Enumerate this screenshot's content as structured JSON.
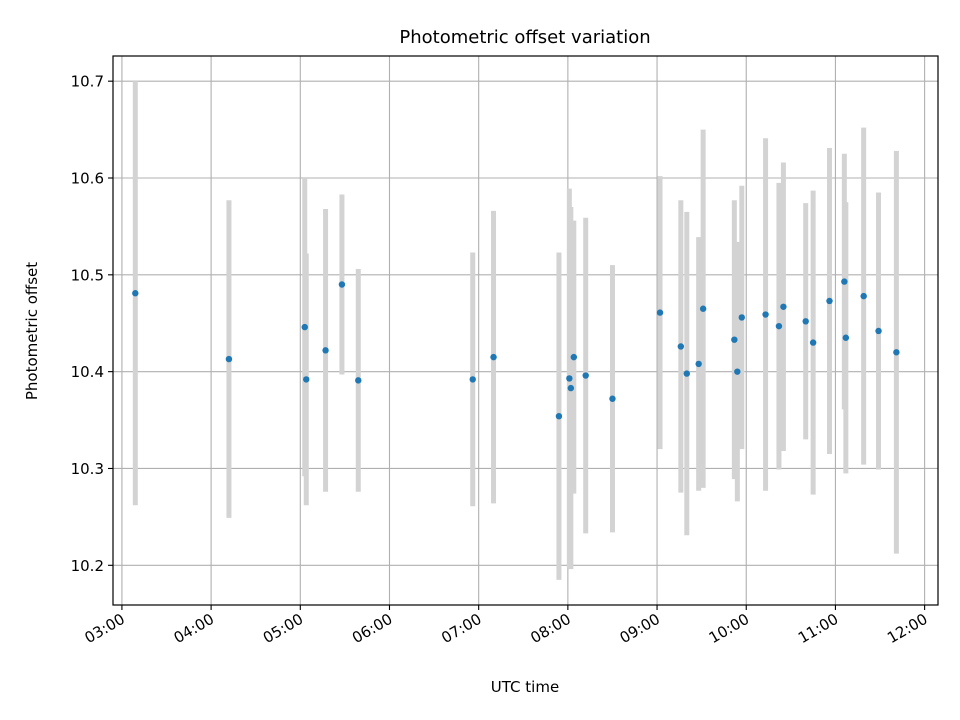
{
  "chart_data": {
    "type": "scatter",
    "title": "Photometric offset variation",
    "xlabel": "UTC time",
    "ylabel": "Photometric offset",
    "x_unit": "hours UTC",
    "xlim": [
      "02:54",
      "12:09"
    ],
    "ylim": [
      10.159,
      10.726
    ],
    "grid": true,
    "x_ticks": [
      "03:00",
      "04:00",
      "05:00",
      "06:00",
      "07:00",
      "08:00",
      "09:00",
      "10:00",
      "11:00",
      "12:00"
    ],
    "y_ticks": [
      "10.2",
      "10.3",
      "10.4",
      "10.5",
      "10.6",
      "10.7"
    ],
    "marker_color": "#1f77b4",
    "errorbar_color": "#d3d3d3",
    "series": [
      {
        "points": [
          {
            "x": "03:09",
            "y": 10.481,
            "err": 0.219
          },
          {
            "x": "04:12",
            "y": 10.413,
            "err": 0.164
          },
          {
            "x": "05:03",
            "y": 10.446,
            "err": 0.154
          },
          {
            "x": "05:04",
            "y": 10.392,
            "err": 0.13
          },
          {
            "x": "05:17",
            "y": 10.422,
            "err": 0.146
          },
          {
            "x": "05:28",
            "y": 10.49,
            "err": 0.093
          },
          {
            "x": "05:39",
            "y": 10.391,
            "err": 0.115
          },
          {
            "x": "06:56",
            "y": 10.392,
            "err": 0.131
          },
          {
            "x": "07:10",
            "y": 10.415,
            "err": 0.151
          },
          {
            "x": "07:54",
            "y": 10.354,
            "err": 0.169
          },
          {
            "x": "08:01",
            "y": 10.393,
            "err": 0.196
          },
          {
            "x": "08:02",
            "y": 10.383,
            "err": 0.187
          },
          {
            "x": "08:04",
            "y": 10.415,
            "err": 0.141
          },
          {
            "x": "08:12",
            "y": 10.396,
            "err": 0.163
          },
          {
            "x": "08:30",
            "y": 10.372,
            "err": 0.138
          },
          {
            "x": "09:02",
            "y": 10.461,
            "err": 0.141
          },
          {
            "x": "09:16",
            "y": 10.426,
            "err": 0.151
          },
          {
            "x": "09:20",
            "y": 10.398,
            "err": 0.167
          },
          {
            "x": "09:28",
            "y": 10.408,
            "err": 0.131
          },
          {
            "x": "09:31",
            "y": 10.465,
            "err": 0.185
          },
          {
            "x": "09:52",
            "y": 10.433,
            "err": 0.144
          },
          {
            "x": "09:54",
            "y": 10.4,
            "err": 0.134
          },
          {
            "x": "09:57",
            "y": 10.456,
            "err": 0.136
          },
          {
            "x": "10:13",
            "y": 10.459,
            "err": 0.182
          },
          {
            "x": "10:22",
            "y": 10.447,
            "err": 0.148
          },
          {
            "x": "10:25",
            "y": 10.467,
            "err": 0.149
          },
          {
            "x": "10:40",
            "y": 10.452,
            "err": 0.122
          },
          {
            "x": "10:45",
            "y": 10.43,
            "err": 0.157
          },
          {
            "x": "10:56",
            "y": 10.473,
            "err": 0.158
          },
          {
            "x": "11:06",
            "y": 10.493,
            "err": 0.132
          },
          {
            "x": "11:07",
            "y": 10.435,
            "err": 0.14
          },
          {
            "x": "11:19",
            "y": 10.478,
            "err": 0.174
          },
          {
            "x": "11:29",
            "y": 10.442,
            "err": 0.143
          },
          {
            "x": "11:41",
            "y": 10.42,
            "err": 0.208
          }
        ]
      }
    ]
  }
}
